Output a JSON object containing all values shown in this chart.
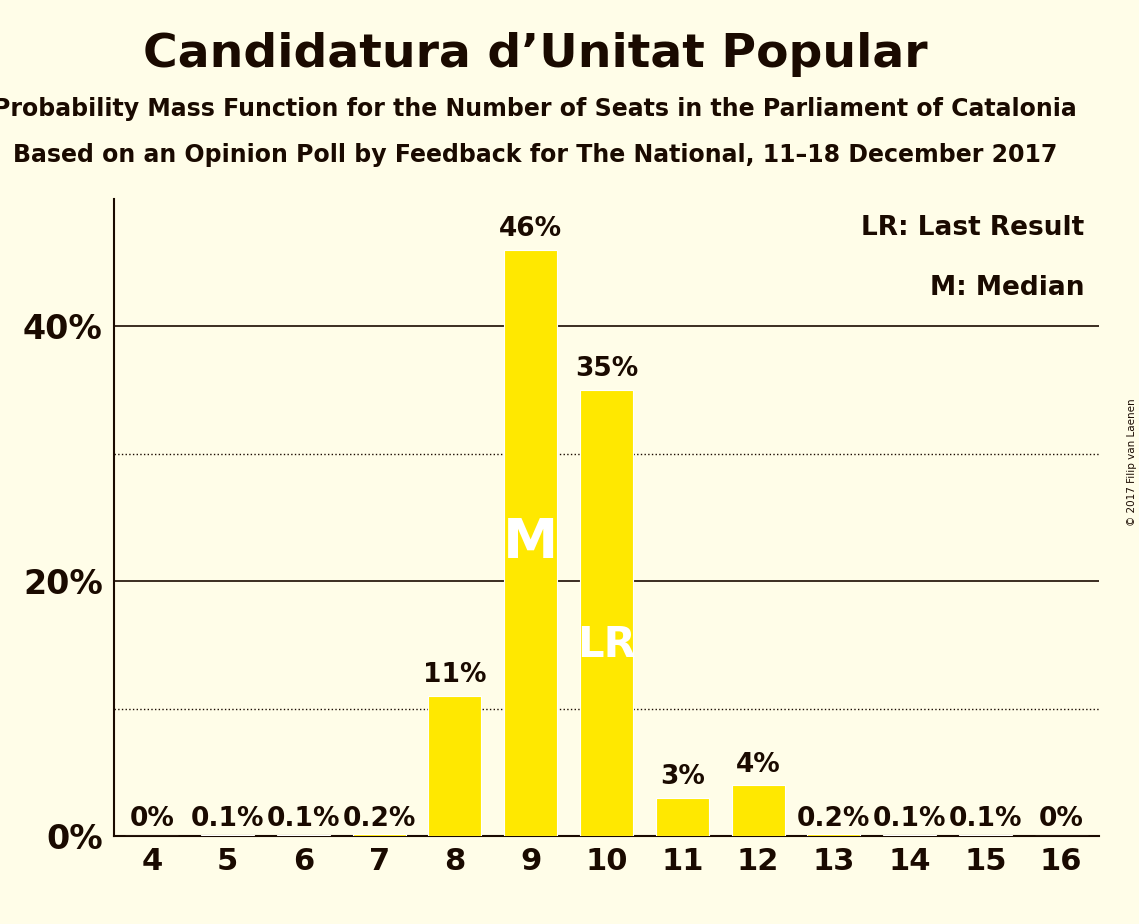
{
  "title": "Candidatura d’Unitat Popular",
  "subtitle1": "Probability Mass Function for the Number of Seats in the Parliament of Catalonia",
  "subtitle2": "Based on an Opinion Poll by Feedback for The National, 11–18 December 2017",
  "copyright": "© 2017 Filip van Laenen",
  "categories": [
    4,
    5,
    6,
    7,
    8,
    9,
    10,
    11,
    12,
    13,
    14,
    15,
    16
  ],
  "values": [
    0.0,
    0.1,
    0.1,
    0.2,
    11.0,
    46.0,
    35.0,
    3.0,
    4.0,
    0.2,
    0.1,
    0.1,
    0.0
  ],
  "bar_color": "#FFE800",
  "bar_edge_color": "#FFFFFF",
  "background_color": "#FFFDE8",
  "text_color": "#1A0A00",
  "median_bar": 9,
  "lr_bar": 10,
  "median_label": "M",
  "lr_label": "LR",
  "legend_lr": "LR: Last Result",
  "legend_m": "M: Median",
  "solid_yticks": [
    20,
    40
  ],
  "dotted_yticks": [
    10,
    30
  ],
  "ylim": [
    0,
    50
  ],
  "bar_label_positions": {
    "4": "0%",
    "5": "0.1%",
    "6": "0.1%",
    "7": "0.2%",
    "8": "11%",
    "9": "46%",
    "10": "35%",
    "11": "3%",
    "12": "4%",
    "13": "0.2%",
    "14": "0.1%",
    "15": "0.1%",
    "16": "0%"
  },
  "title_fontsize": 34,
  "subtitle_fontsize": 17,
  "ytick_fontsize": 24,
  "xtick_fontsize": 22,
  "bar_label_fontsize": 19,
  "legend_fontsize": 19,
  "bar_width": 0.7
}
